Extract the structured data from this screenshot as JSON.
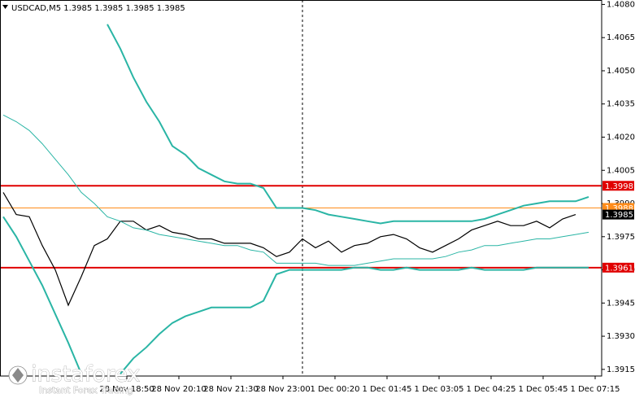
{
  "chart_data": {
    "type": "line",
    "title": "USDCAD,M5  1.3985 1.3985 1.3985 1.3985",
    "x": [
      0,
      4,
      8,
      12,
      16,
      20,
      24,
      28,
      32,
      36,
      40,
      44,
      48,
      52,
      56,
      60,
      64,
      68,
      72,
      76,
      80,
      84,
      88,
      92,
      96,
      100,
      104,
      108,
      112,
      116,
      120,
      124,
      128,
      132,
      136,
      140,
      144,
      148,
      152,
      156,
      160,
      164,
      168,
      172,
      176,
      180
    ],
    "xlim": [
      -1,
      184
    ],
    "xticks": [
      {
        "value": 38,
        "label": "28 Nov 18:50"
      },
      {
        "value": 54,
        "label": "28 Nov 20:10"
      },
      {
        "value": 70,
        "label": "28 Nov 21:30"
      },
      {
        "value": 86,
        "label": "28 Nov 23:00"
      },
      {
        "value": 102,
        "label": "1 Dec 00:20"
      },
      {
        "value": 118,
        "label": "1 Dec 01:45"
      },
      {
        "value": 134,
        "label": "1 Dec 03:05"
      },
      {
        "value": 150,
        "label": "1 Dec 04:25"
      },
      {
        "value": 166,
        "label": "1 Dec 05:45"
      },
      {
        "value": 182,
        "label": "1 Dec 07:15"
      }
    ],
    "ylim": [
      1.3912,
      1.4082
    ],
    "yticks": [
      {
        "value": 1.3915,
        "label": "1.3915"
      },
      {
        "value": 1.393,
        "label": "1.3930"
      },
      {
        "value": 1.3945,
        "label": "1.3945"
      },
      {
        "value": 1.396,
        "label": "1.3960"
      },
      {
        "value": 1.3975,
        "label": "1.3975"
      },
      {
        "value": 1.399,
        "label": "1.3990"
      },
      {
        "value": 1.4005,
        "label": "1.4005"
      },
      {
        "value": 1.402,
        "label": "1.4020"
      },
      {
        "value": 1.4035,
        "label": "1.4035"
      },
      {
        "value": 1.405,
        "label": "1.4050"
      },
      {
        "value": 1.4065,
        "label": "1.4065"
      },
      {
        "value": 1.408,
        "label": "1.4080"
      }
    ],
    "series": [
      {
        "color": "#000000",
        "values": [
          1.3995,
          1.3985,
          1.3984,
          1.3971,
          1.396,
          1.3944,
          1.3957,
          1.3971,
          1.3974,
          1.3982,
          1.3982,
          1.3978,
          1.398,
          1.3977,
          1.3976,
          1.3974,
          1.3974,
          1.3972,
          1.3972,
          1.3972,
          1.397,
          1.3966,
          1.3968,
          1.3974,
          1.397,
          1.3973,
          1.3968,
          1.3971,
          1.3972,
          1.3975,
          1.3976,
          1.3974,
          1.397,
          1.3968,
          1.3971,
          1.3974,
          1.3978,
          1.398,
          1.3982,
          1.398,
          1.398,
          1.3982,
          1.3979,
          1.3983,
          1.3985,
          null
        ]
      },
      {
        "color": "#2ab5a5",
        "values": [
          null,
          null,
          null,
          null,
          null,
          null,
          null,
          null,
          1.4071,
          1.406,
          1.4047,
          1.4036,
          1.4027,
          1.4016,
          1.4012,
          1.4006,
          1.4003,
          1.4,
          1.3999,
          1.3999,
          1.3997,
          1.3988,
          1.3988,
          1.3988,
          1.3987,
          1.3985,
          1.3984,
          1.3983,
          1.3982,
          1.3981,
          1.3982,
          1.3982,
          1.3982,
          1.3982,
          1.3982,
          1.3982,
          1.3982,
          1.3983,
          1.3985,
          1.3987,
          1.3989,
          1.399,
          1.3991,
          1.3991,
          1.3991,
          1.3993
        ]
      },
      {
        "color": "#2ab5a5",
        "values": [
          1.403,
          1.4027,
          1.4023,
          1.4017,
          1.401,
          1.4003,
          1.3995,
          1.399,
          1.3984,
          1.3982,
          1.3979,
          1.3978,
          1.3976,
          1.3975,
          1.3974,
          1.3973,
          1.3972,
          1.3971,
          1.3971,
          1.3969,
          1.3968,
          1.3963,
          1.3963,
          1.3963,
          1.3963,
          1.3962,
          1.3962,
          1.3962,
          1.3963,
          1.3964,
          1.3965,
          1.3965,
          1.3965,
          1.3965,
          1.3966,
          1.3968,
          1.3969,
          1.3971,
          1.3971,
          1.3972,
          1.3973,
          1.3974,
          1.3974,
          1.3975,
          1.3976,
          1.3977
        ]
      },
      {
        "color": "#2ab5a5",
        "values": [
          1.3984,
          1.3975,
          1.3964,
          1.3953,
          1.394,
          1.3927,
          1.3913,
          null,
          null,
          1.3913,
          1.392,
          1.3925,
          1.3931,
          1.3936,
          1.3939,
          1.3941,
          1.3943,
          1.3943,
          1.3943,
          1.3943,
          1.3946,
          1.3958,
          1.396,
          1.396,
          1.396,
          1.396,
          1.396,
          1.3961,
          1.3961,
          1.396,
          1.396,
          1.3961,
          1.396,
          1.396,
          1.396,
          1.396,
          1.3961,
          1.396,
          1.396,
          1.396,
          1.396,
          1.3961,
          1.3961,
          1.3961,
          1.3961,
          1.3961
        ]
      }
    ],
    "levels": [
      {
        "value": 1.3998,
        "color": "#e00000"
      },
      {
        "value": 1.3988,
        "color": "#ff8c1a"
      },
      {
        "value": 1.3961,
        "color": "#e00000"
      }
    ],
    "last_price": 1.3985,
    "watermark": {
      "name": "instaforex",
      "tagline": "Instant Forex Trading"
    }
  }
}
